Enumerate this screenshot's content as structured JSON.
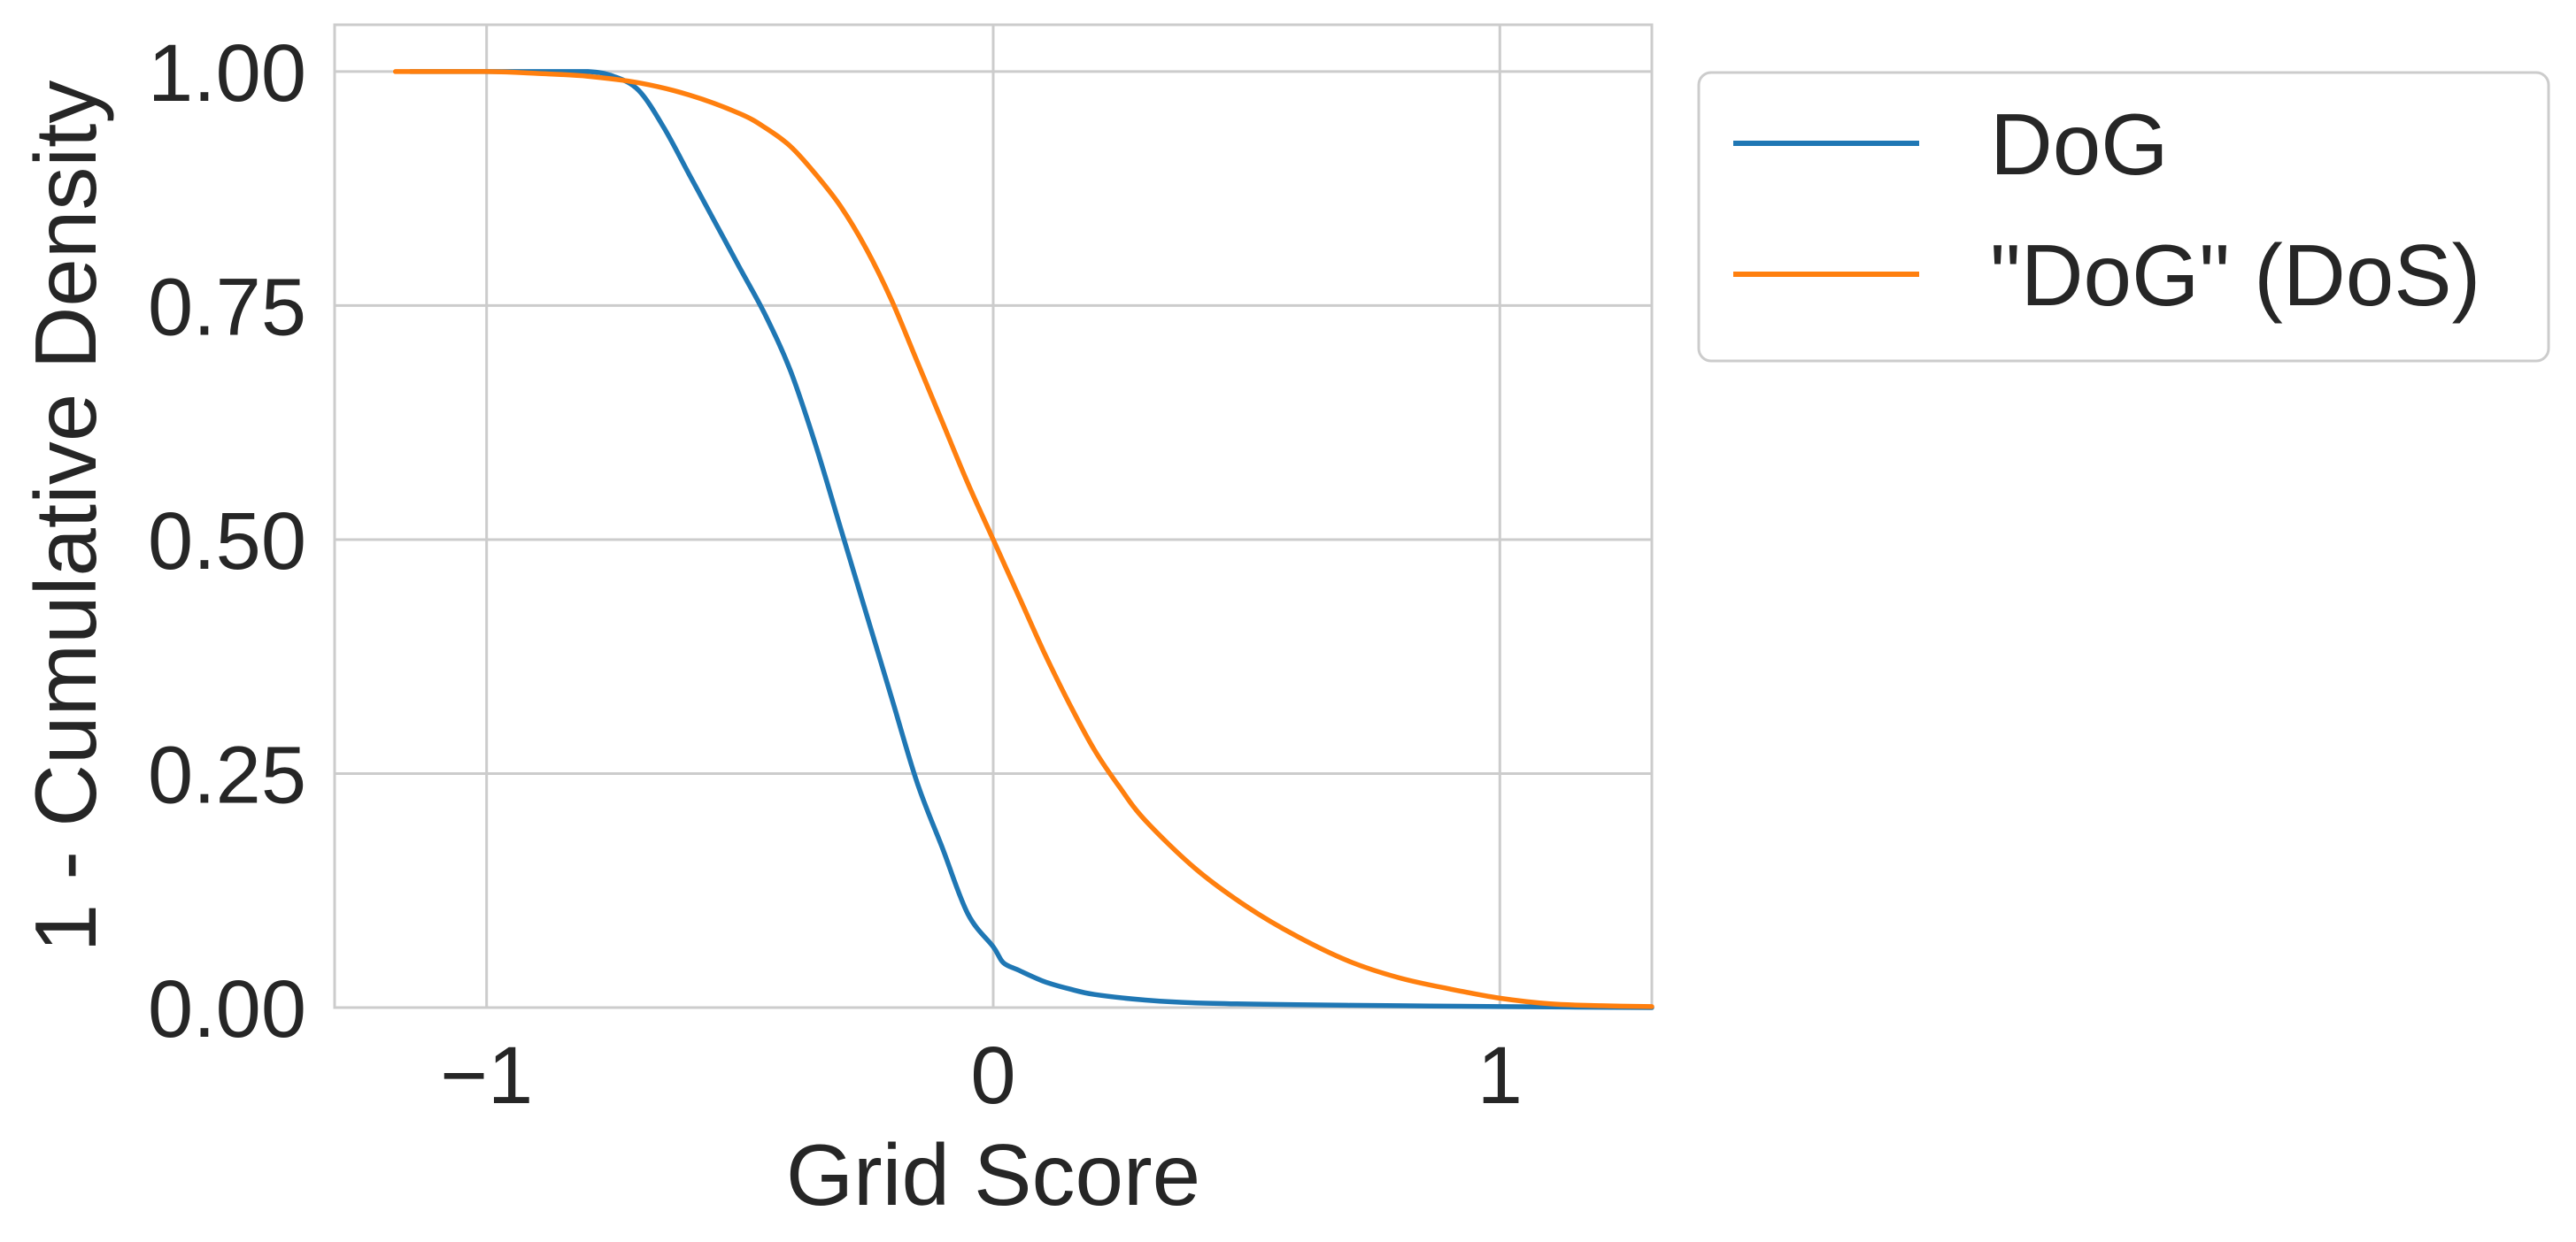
{
  "chart_data": {
    "type": "line",
    "title": "",
    "xlabel": "Grid Score",
    "ylabel": "1 - Cumulative Density",
    "xlim": [
      -1.3,
      1.3
    ],
    "ylim": [
      0,
      1.05
    ],
    "xticks": [
      -1,
      0,
      1
    ],
    "xtick_labels": [
      "−1",
      "0",
      "1"
    ],
    "yticks": [
      0,
      0.25,
      0.5,
      0.75,
      1.0
    ],
    "ytick_labels": [
      "0.00",
      "0.25",
      "0.50",
      "0.75",
      "1.00"
    ],
    "grid": true,
    "legend_position": "outside-right-top",
    "series": [
      {
        "name": "DoG",
        "color": "#1f77b4",
        "x": [
          -1.15,
          -1.0,
          -0.9,
          -0.8,
          -0.75,
          -0.7,
          -0.65,
          -0.6,
          -0.55,
          -0.5,
          -0.45,
          -0.4,
          -0.35,
          -0.3,
          -0.25,
          -0.2,
          -0.15,
          -0.1,
          -0.05,
          0.0,
          0.02,
          0.05,
          0.1,
          0.15,
          0.2,
          0.3,
          0.4,
          0.6,
          0.8,
          1.0,
          1.3
        ],
        "y": [
          1.0,
          1.0,
          1.0,
          1.0,
          0.995,
          0.98,
          0.94,
          0.89,
          0.84,
          0.79,
          0.74,
          0.68,
          0.6,
          0.51,
          0.42,
          0.33,
          0.24,
          0.17,
          0.1,
          0.065,
          0.048,
          0.04,
          0.028,
          0.02,
          0.014,
          0.008,
          0.005,
          0.003,
          0.002,
          0.001,
          0.0
        ]
      },
      {
        "name": "\"DoG\" (DoS)",
        "color": "#ff7f0e",
        "x": [
          -1.18,
          -1.0,
          -0.9,
          -0.8,
          -0.7,
          -0.6,
          -0.5,
          -0.45,
          -0.4,
          -0.35,
          -0.3,
          -0.25,
          -0.2,
          -0.15,
          -0.1,
          -0.05,
          0.0,
          0.05,
          0.1,
          0.15,
          0.2,
          0.25,
          0.3,
          0.4,
          0.5,
          0.6,
          0.7,
          0.8,
          0.9,
          1.0,
          1.1,
          1.2,
          1.3
        ],
        "y": [
          1.0,
          1.0,
          0.998,
          0.995,
          0.988,
          0.975,
          0.955,
          0.94,
          0.92,
          0.89,
          0.855,
          0.81,
          0.755,
          0.69,
          0.625,
          0.56,
          0.5,
          0.44,
          0.38,
          0.325,
          0.275,
          0.235,
          0.2,
          0.148,
          0.108,
          0.076,
          0.05,
          0.032,
          0.02,
          0.01,
          0.004,
          0.002,
          0.001
        ]
      }
    ]
  }
}
